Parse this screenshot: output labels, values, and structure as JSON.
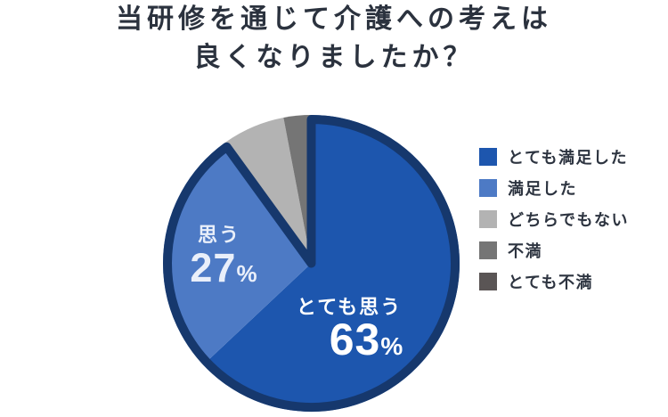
{
  "title": {
    "line1": "当研修を通じて介護への考えは",
    "line2": "良くなりましたか？"
  },
  "chart_data": {
    "type": "pie",
    "title": "当研修を通じて介護への考えは良くなりましたか？",
    "unit": "%",
    "start_angle_deg": 0,
    "direction": "clockwise",
    "legend_position": "right",
    "slices": [
      {
        "legend_label": "とても満足した",
        "pie_label": "とても思う",
        "value": 63,
        "color": "#1d56ae",
        "label_color": "#ffffff"
      },
      {
        "legend_label": "満足した",
        "pie_label": "思う",
        "value": 27,
        "color": "#4d7ac5",
        "label_color": "#e9effa"
      },
      {
        "legend_label": "どちらでもない",
        "pie_label": "",
        "value": 7,
        "color": "#b3b3b3",
        "label_color": ""
      },
      {
        "legend_label": "不満",
        "pie_label": "",
        "value": 3,
        "color": "#757575",
        "label_color": ""
      },
      {
        "legend_label": "とても不満",
        "pie_label": "",
        "value": 0,
        "color": "#5a5555",
        "label_color": ""
      }
    ],
    "outline": {
      "color": "#16386d",
      "width": 10,
      "applies_to_first_n_slices": 2
    },
    "colors": {
      "background": "#ffffff",
      "title_text": "#2b323e",
      "legend_text": "#2d3440"
    }
  }
}
